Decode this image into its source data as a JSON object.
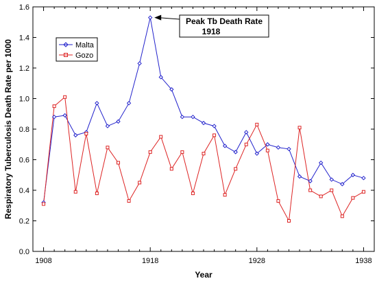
{
  "chart_data": {
    "type": "line",
    "title": "",
    "xlabel": "Year",
    "ylabel": "Respiratory Tuberculosis Death Rate per 1000",
    "xlim": [
      1907,
      1939
    ],
    "ylim": [
      0,
      1.6
    ],
    "xticks": [
      1908,
      1918,
      1928,
      1938
    ],
    "yticks": [
      0.0,
      0.2,
      0.4,
      0.6,
      0.8,
      1.0,
      1.2,
      1.4,
      1.6
    ],
    "ytick_labels": [
      "0.0",
      "0.2",
      "0.4",
      "0.6",
      "0.8",
      "1.0",
      "1.2",
      "1.4",
      "1.6"
    ],
    "grid": false,
    "legend_position": "top-left",
    "x": [
      1908,
      1909,
      1910,
      1911,
      1912,
      1913,
      1914,
      1915,
      1916,
      1917,
      1918,
      1919,
      1920,
      1921,
      1922,
      1923,
      1924,
      1925,
      1926,
      1927,
      1928,
      1929,
      1930,
      1931,
      1932,
      1933,
      1934,
      1935,
      1936,
      1937,
      1938
    ],
    "series": [
      {
        "name": "Malta",
        "color": "#2222cc",
        "marker": "diamond",
        "values": [
          0.32,
          0.88,
          0.89,
          0.76,
          0.78,
          0.97,
          0.82,
          0.85,
          0.97,
          1.23,
          1.53,
          1.14,
          1.06,
          0.88,
          0.88,
          0.84,
          0.82,
          0.69,
          0.65,
          0.78,
          0.64,
          0.7,
          0.68,
          0.67,
          0.49,
          0.46,
          0.58,
          0.47,
          0.44,
          0.5,
          0.48
        ]
      },
      {
        "name": "Gozo",
        "color": "#dd2222",
        "marker": "square",
        "values": [
          0.31,
          0.95,
          1.01,
          0.39,
          0.77,
          0.38,
          0.68,
          0.58,
          0.33,
          0.45,
          0.65,
          0.75,
          0.54,
          0.65,
          0.38,
          0.64,
          0.76,
          0.37,
          0.54,
          0.7,
          0.83,
          0.66,
          0.33,
          0.2,
          0.81,
          0.4,
          0.36,
          0.4,
          0.23,
          0.35,
          0.39
        ]
      }
    ],
    "annotations": [
      {
        "line1": "Peak Tb Death Rate",
        "line2": "1918",
        "x": 1918,
        "y": 1.53
      }
    ]
  }
}
